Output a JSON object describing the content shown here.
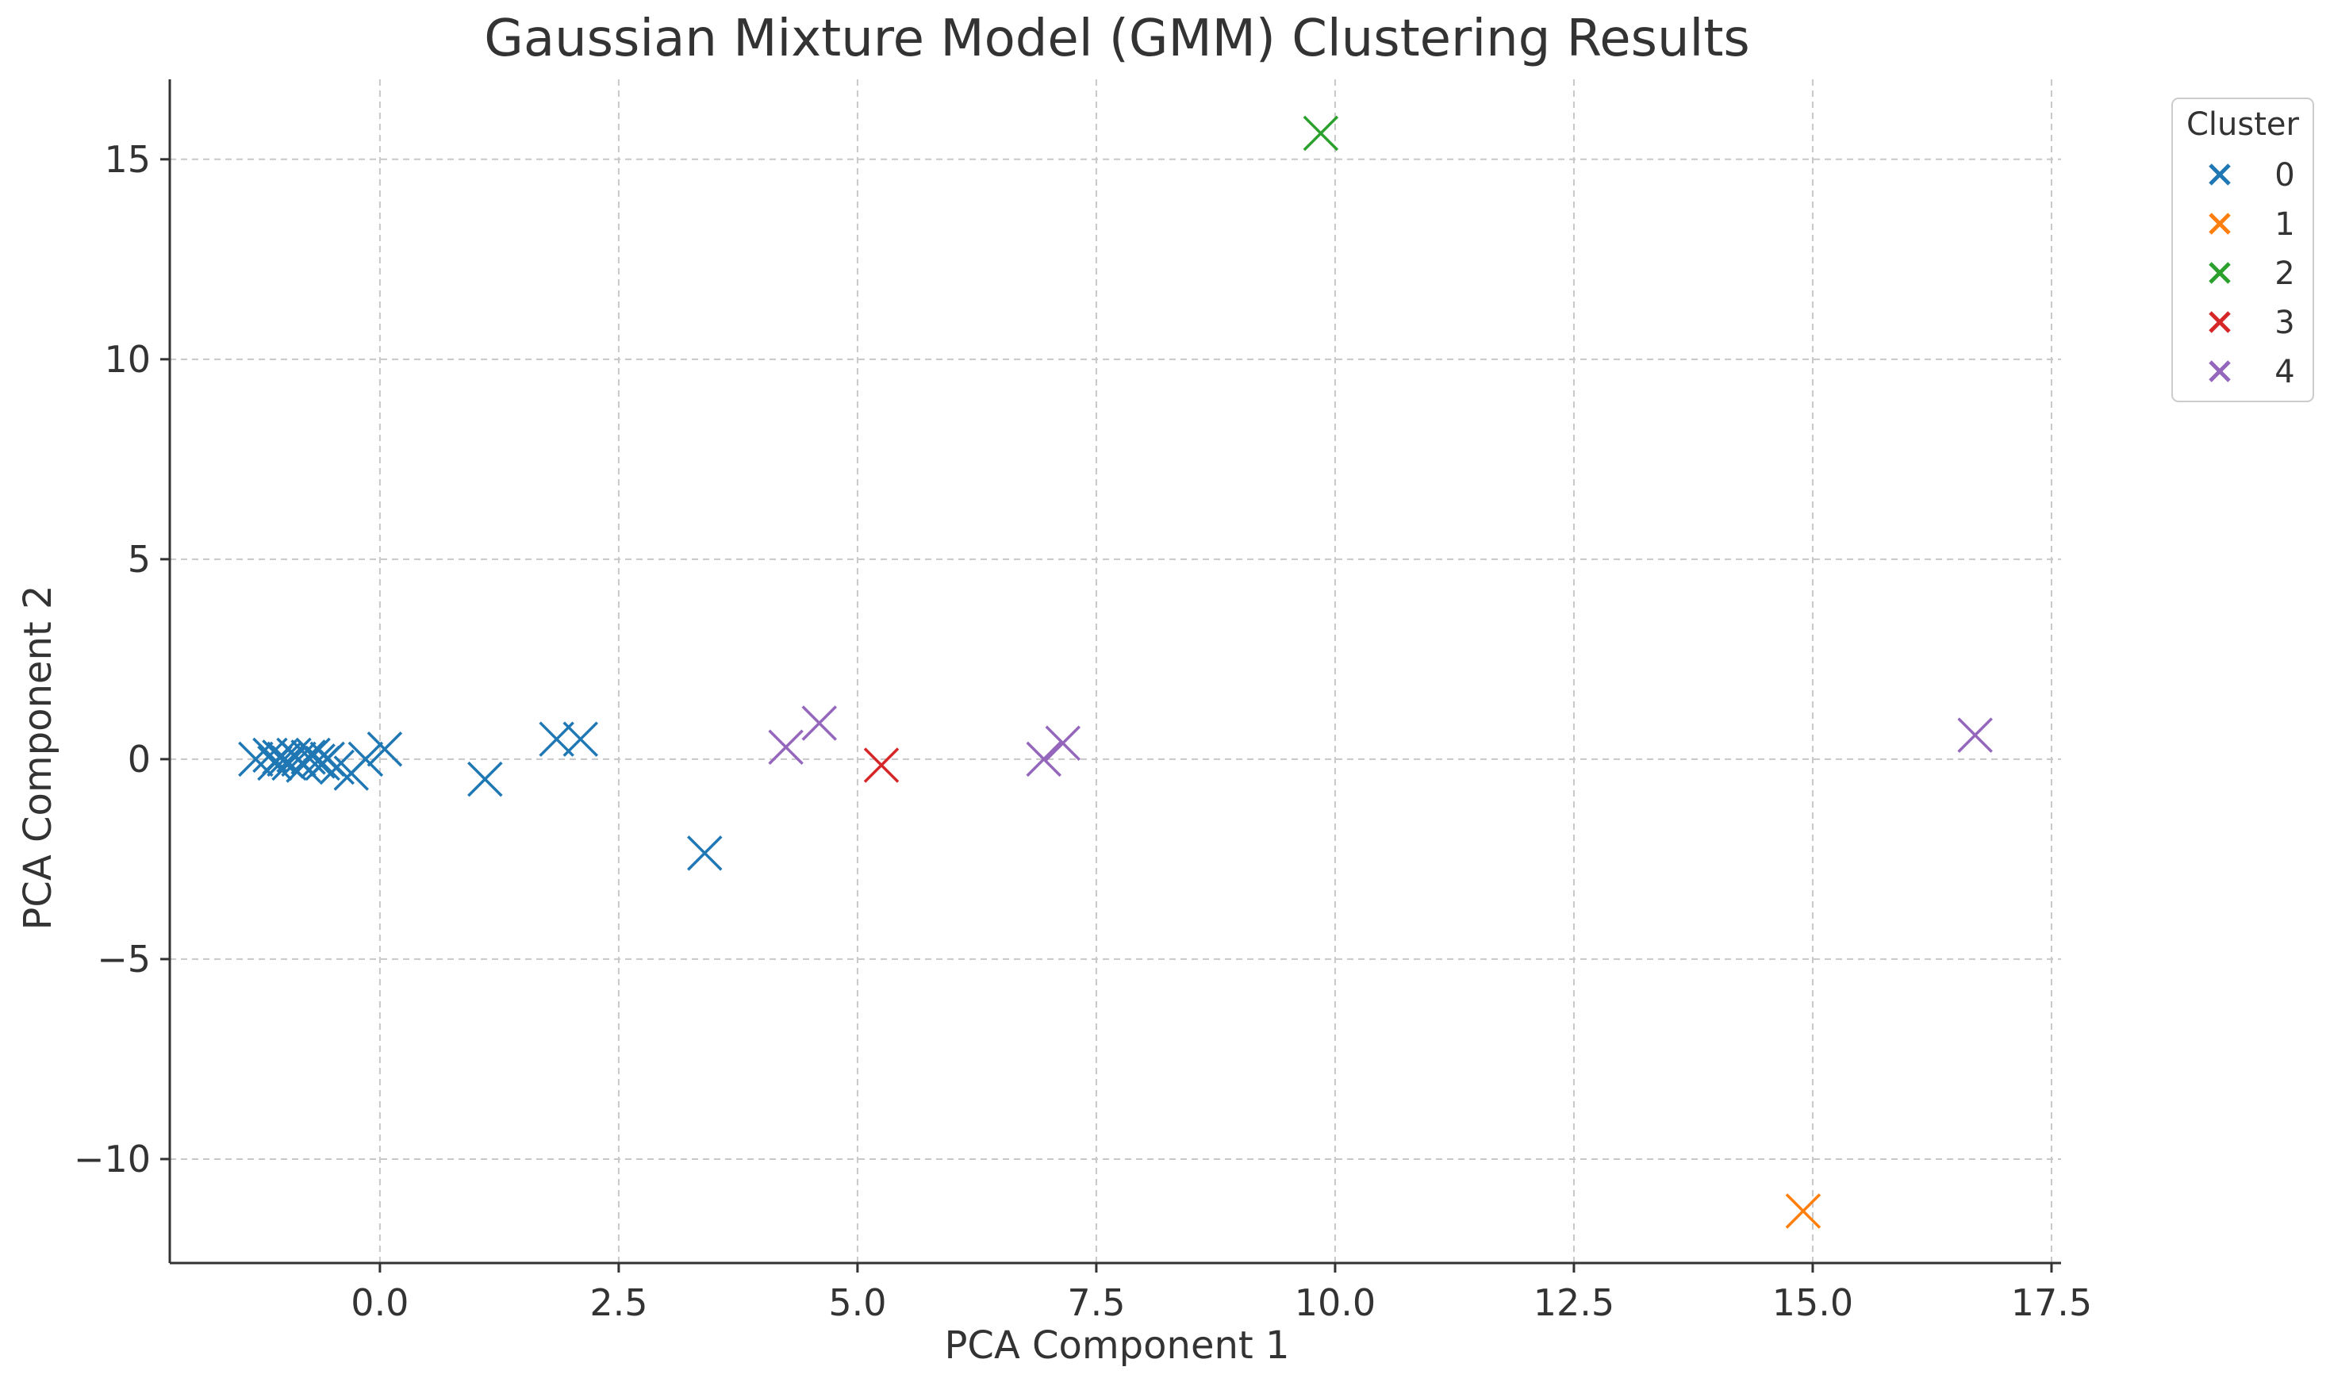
{
  "chart_data": {
    "type": "scatter",
    "title": "Gaussian Mixture Model (GMM) Clustering Results",
    "xlabel": "PCA Component 1",
    "ylabel": "PCA Component 2",
    "xlim": [
      -2.2,
      17.6
    ],
    "ylim": [
      -12.6,
      17.0
    ],
    "xticks": [
      0.0,
      2.5,
      5.0,
      7.5,
      10.0,
      12.5,
      15.0,
      17.5
    ],
    "xtick_labels": [
      "0.0",
      "2.5",
      "5.0",
      "7.5",
      "10.0",
      "12.5",
      "15.0",
      "17.5"
    ],
    "yticks": [
      -10,
      -5,
      0,
      5,
      10,
      15
    ],
    "ytick_labels": [
      "−10",
      "−5",
      "0",
      "5",
      "10",
      "15"
    ],
    "grid": true,
    "legend": {
      "title": "Cluster",
      "placement": "outside-top-right"
    },
    "marker": "x",
    "series": [
      {
        "name": "0",
        "color": "#1f77b4",
        "points": [
          [
            -1.3,
            0.0
          ],
          [
            -1.15,
            0.1
          ],
          [
            -1.1,
            -0.1
          ],
          [
            -1.05,
            0.05
          ],
          [
            -1.0,
            0.0
          ],
          [
            -0.95,
            -0.1
          ],
          [
            -0.9,
            0.1
          ],
          [
            -0.85,
            0.0
          ],
          [
            -0.8,
            -0.15
          ],
          [
            -0.75,
            0.05
          ],
          [
            -0.7,
            0.1
          ],
          [
            -0.65,
            -0.05
          ],
          [
            -0.6,
            -0.1
          ],
          [
            -0.55,
            0.0
          ],
          [
            -0.45,
            -0.2
          ],
          [
            -0.3,
            -0.35
          ],
          [
            -0.15,
            0.0
          ],
          [
            0.05,
            0.25
          ],
          [
            1.1,
            -0.5
          ],
          [
            1.85,
            0.5
          ],
          [
            2.1,
            0.5
          ],
          [
            3.4,
            -2.35
          ]
        ]
      },
      {
        "name": "1",
        "color": "#ff7f0e",
        "points": [
          [
            14.9,
            -11.3
          ]
        ]
      },
      {
        "name": "2",
        "color": "#2ca02c",
        "points": [
          [
            9.85,
            15.65
          ]
        ]
      },
      {
        "name": "3",
        "color": "#d62728",
        "points": [
          [
            5.25,
            -0.15
          ]
        ]
      },
      {
        "name": "4",
        "color": "#9467bd",
        "points": [
          [
            4.25,
            0.3
          ],
          [
            4.6,
            0.9
          ],
          [
            6.95,
            0.0
          ],
          [
            7.15,
            0.4
          ],
          [
            16.7,
            0.6
          ]
        ]
      }
    ]
  }
}
